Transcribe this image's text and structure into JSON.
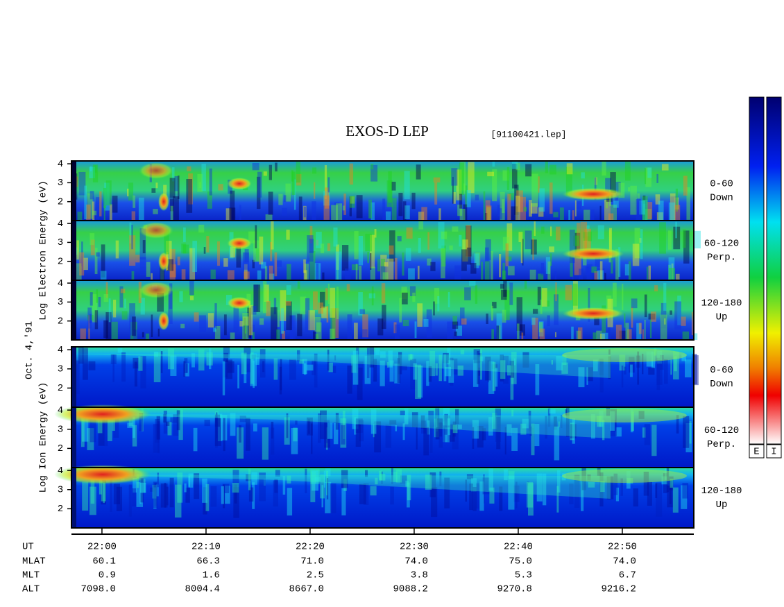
{
  "chart_data": {
    "type": "spectrogram",
    "title": "EXOS-D LEP",
    "subtitle": "[91100421.lep]",
    "date_label": "Oct. 4,'91",
    "ylim": [
      1,
      4.15
    ],
    "yticks": [
      2,
      3,
      4
    ],
    "xlim": [
      1317.07,
      1376.87
    ],
    "xticks": [
      {
        "value": 1320,
        "label": "22:00"
      },
      {
        "value": 1330,
        "label": "22:10"
      },
      {
        "value": 1340,
        "label": "22:20"
      },
      {
        "value": 1350,
        "label": "22:30"
      },
      {
        "value": 1360,
        "label": "22:40"
      },
      {
        "value": 1370,
        "label": "22:50"
      }
    ],
    "groups": [
      {
        "ylabel": "Log Electron Energy (eV)",
        "species": "electron",
        "panels": [
          {
            "label": "0-60",
            "sublabel": "Down"
          },
          {
            "label": "60-120",
            "sublabel": "Perp."
          },
          {
            "label": "120-180",
            "sublabel": "Up"
          }
        ]
      },
      {
        "ylabel": "Log Ion Energy (eV)",
        "species": "ion",
        "panels": [
          {
            "label": "0-60",
            "sublabel": "Down"
          },
          {
            "label": "60-120",
            "sublabel": "Perp."
          },
          {
            "label": "120-180",
            "sublabel": "Up"
          }
        ]
      }
    ],
    "ephemeris_time_label": "UT",
    "ephemeris": [
      {
        "name": "MLAT",
        "values": [
          "60.1",
          "66.3",
          "71.0",
          "74.0",
          "75.0",
          "74.0"
        ]
      },
      {
        "name": "MLT",
        "values": [
          "0.9",
          "1.6",
          "2.5",
          "3.8",
          "5.3",
          "6.7"
        ]
      },
      {
        "name": "ALT",
        "values": [
          "7098.0",
          "8004.4",
          "8667.0",
          "9088.2",
          "9270.8",
          "9216.2"
        ]
      }
    ],
    "colorbar_labels": [
      "E",
      "I"
    ]
  }
}
